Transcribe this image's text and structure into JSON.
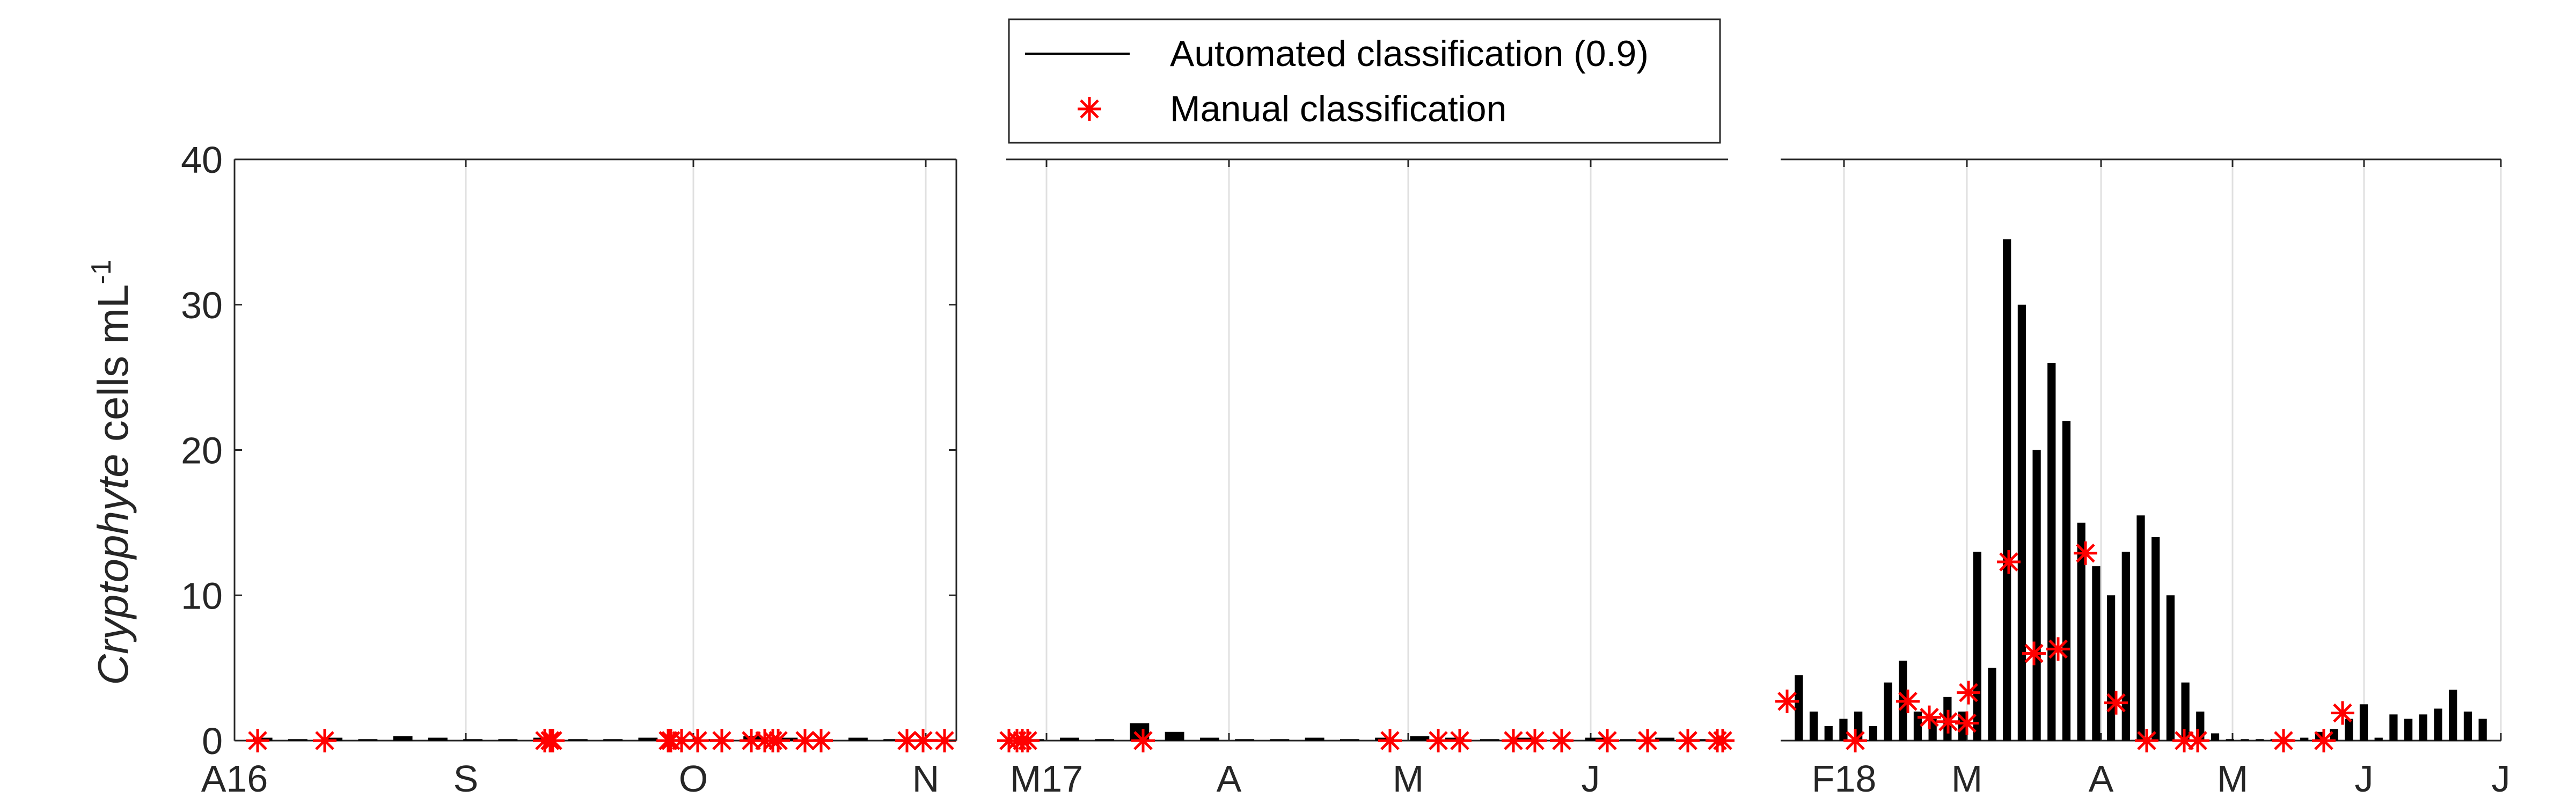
{
  "legend": {
    "entries": [
      {
        "label": "Automated classification (0.9)",
        "marker": "line",
        "color": "#000000"
      },
      {
        "label": "Manual classification",
        "marker": "asterisk",
        "color": "#ff0000"
      }
    ]
  },
  "y_axis": {
    "label_italic": "Cryptophyte",
    "label_rest": " cells mL",
    "label_sup": "-1",
    "ticks": [
      "0",
      "10",
      "20",
      "30",
      "40"
    ],
    "ylim": [
      0,
      40
    ]
  },
  "chart_data": [
    {
      "type": "bar",
      "panel": "left",
      "x_ticks": [
        "A16",
        "S",
        "O",
        "N"
      ],
      "ylim": [
        0,
        40
      ],
      "grid": "vertical",
      "series": [
        {
          "name": "Automated classification (0.9)",
          "type": "bar",
          "values": [
            0.2,
            0.1,
            0.2,
            0.1,
            0.3,
            0.2,
            0.1,
            0.1,
            0.2,
            0.1,
            0.1,
            0.2,
            0.1,
            0.1,
            0.3,
            0.2,
            0.1,
            0.2,
            0.1,
            0.1
          ]
        },
        {
          "name": "Manual classification",
          "type": "scatter",
          "values": [
            0,
            0,
            0,
            0,
            0,
            0,
            0,
            0,
            0,
            0,
            0,
            0,
            0,
            0,
            0,
            0,
            0,
            0,
            0
          ]
        }
      ]
    },
    {
      "type": "bar",
      "panel": "middle",
      "x_ticks": [
        "M17",
        "A",
        "M",
        "J"
      ],
      "ylim": [
        0,
        40
      ],
      "grid": "vertical",
      "series": [
        {
          "name": "Automated classification (0.9)",
          "type": "bar",
          "values": [
            0.1,
            0.2,
            0.1,
            1.2,
            0.6,
            0.2,
            0.1,
            0.1,
            0.2,
            0.1,
            0.2,
            0.3,
            0.2,
            0.1,
            0.2,
            0.1,
            0.2,
            0.1,
            0.2,
            0.1
          ]
        },
        {
          "name": "Manual classification",
          "type": "scatter",
          "values": [
            0,
            0,
            0,
            0,
            0,
            0,
            0,
            0,
            0,
            0,
            0,
            0,
            0,
            0,
            0,
            0,
            0,
            0
          ]
        }
      ]
    },
    {
      "type": "bar",
      "panel": "right",
      "x_ticks": [
        "F18",
        "M",
        "A",
        "M",
        "J",
        "J"
      ],
      "ylim": [
        0,
        40
      ],
      "grid": "vertical",
      "series": [
        {
          "name": "Automated classification (0.9)",
          "type": "bar",
          "values": [
            4.5,
            2,
            1,
            1.5,
            2,
            1,
            4,
            5.5,
            2,
            1.5,
            3,
            2,
            13,
            5,
            34.5,
            30,
            20,
            26,
            22,
            15,
            12,
            10,
            13,
            15.5,
            14,
            10,
            4,
            2,
            0.5,
            0.1,
            0.1,
            0.1,
            0.1,
            0.1,
            0.2,
            0.6,
            0.8,
            1.5,
            2.5,
            0.2,
            1.8,
            1.5,
            1.8,
            2.2,
            3.5,
            2,
            1.5
          ]
        },
        {
          "name": "Manual classification",
          "type": "scatter",
          "values": [
            2.7,
            0,
            2.7,
            1.6,
            1.3,
            1.2,
            3.3,
            12.3,
            6.0,
            6.3,
            12.9,
            2.6,
            0,
            0,
            0,
            0,
            0,
            1.9
          ]
        }
      ]
    }
  ]
}
